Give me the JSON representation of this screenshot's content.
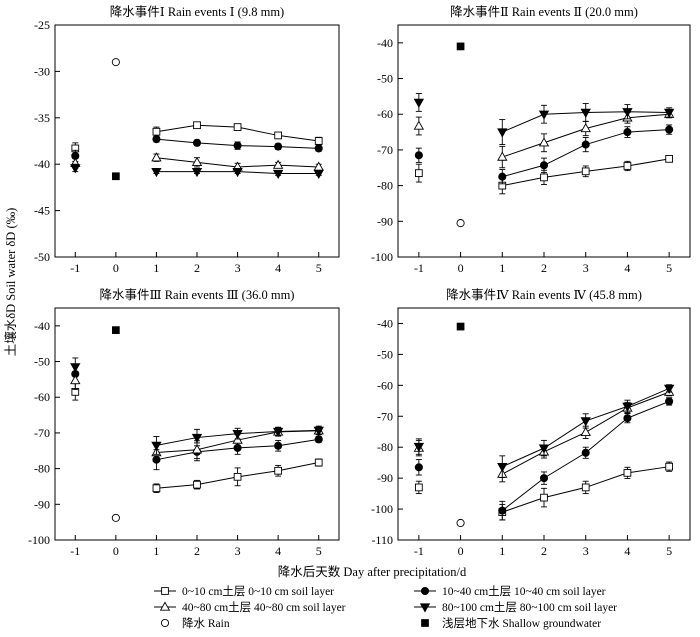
{
  "ylabel": "土壤水δD Soil water δD (‰)",
  "xlabel": "降水后天数 Day after precipitation/d",
  "legend": [
    {
      "key": "l0_10",
      "marker": "square-open",
      "label": "0~10 cm土层  0~10 cm soil layer"
    },
    {
      "key": "l10_40",
      "marker": "circle-filled",
      "label": "10~40 cm土层  10~40 cm soil layer"
    },
    {
      "key": "l40_80",
      "marker": "triangle-up-open",
      "label": "40~80 cm土层  40~80 cm soil layer"
    },
    {
      "key": "l80_100",
      "marker": "triangle-down-filled",
      "label": "80~100 cm土层  80~100 cm soil layer"
    },
    {
      "key": "rain",
      "marker": "circle-open",
      "label": "降水  Rain"
    },
    {
      "key": "gw",
      "marker": "square-filled",
      "label": "浅层地下水  Shallow groundwater"
    }
  ],
  "chart_data": [
    {
      "type": "line",
      "title": "降水事件Ⅰ  Rain events Ⅰ (9.8 mm)",
      "xticks": [
        -1,
        0,
        1,
        2,
        3,
        4,
        5
      ],
      "xlim": [
        -1.5,
        5.5
      ],
      "ylim": [
        -50,
        -25
      ],
      "yticks": [
        -50,
        -45,
        -40,
        -35,
        -30,
        -25
      ],
      "series": [
        {
          "key": "l0_10",
          "x": [
            -1,
            1,
            2,
            3,
            4,
            5
          ],
          "values": [
            -38.3,
            -36.5,
            -35.8,
            -36.0,
            -36.9,
            -37.5
          ],
          "err": [
            0.6,
            0.5,
            0.2,
            0.3,
            0.3,
            0.4
          ]
        },
        {
          "key": "l10_40",
          "x": [
            -1,
            1,
            2,
            3,
            4,
            5
          ],
          "values": [
            -39.1,
            -37.3,
            -37.7,
            -38.0,
            -38.1,
            -38.3
          ],
          "err": [
            0.6,
            0.3,
            0.3,
            0.4,
            0.3,
            0.3
          ]
        },
        {
          "key": "l40_80",
          "x": [
            -1,
            1,
            2,
            3,
            4,
            5
          ],
          "values": [
            -39.9,
            -39.3,
            -39.8,
            -40.3,
            -40.1,
            -40.3
          ],
          "err": [
            0.5,
            0.4,
            0.5,
            0.4,
            0.3,
            0.3
          ]
        },
        {
          "key": "l80_100",
          "x": [
            -1,
            1,
            2,
            3,
            4,
            5
          ],
          "values": [
            -40.4,
            -40.8,
            -40.8,
            -40.8,
            -41.0,
            -41.0
          ],
          "err": [
            0.4,
            0.2,
            0.2,
            0.2,
            0.2,
            0.2
          ]
        },
        {
          "key": "rain",
          "x": [
            0
          ],
          "values": [
            -29.0
          ],
          "err": [
            0
          ]
        },
        {
          "key": "gw",
          "x": [
            0
          ],
          "values": [
            -41.3
          ],
          "err": [
            0
          ]
        }
      ]
    },
    {
      "type": "line",
      "title": "降水事件Ⅱ  Rain events Ⅱ (20.0 mm)",
      "xticks": [
        -1,
        0,
        1,
        2,
        3,
        4,
        5
      ],
      "xlim": [
        -1.5,
        5.5
      ],
      "ylim": [
        -100,
        -35
      ],
      "yticks": [
        -100,
        -90,
        -80,
        -70,
        -60,
        -50,
        -40
      ],
      "series": [
        {
          "key": "l0_10",
          "x": [
            -1,
            1,
            2,
            3,
            4,
            5
          ],
          "values": [
            -76.5,
            -80.0,
            -77.7,
            -76.0,
            -74.5,
            -72.5
          ],
          "err": [
            2.5,
            2.3,
            2.0,
            1.5,
            1.3,
            0.7
          ]
        },
        {
          "key": "l10_40",
          "x": [
            -1,
            1,
            2,
            3,
            4,
            5
          ],
          "values": [
            -71.5,
            -77.5,
            -74.3,
            -68.5,
            -65.0,
            -64.3
          ],
          "err": [
            2.0,
            2.0,
            2.0,
            2.0,
            1.5,
            1.3
          ]
        },
        {
          "key": "l40_80",
          "x": [
            -1,
            1,
            2,
            3,
            4,
            5
          ],
          "values": [
            -63.3,
            -72.0,
            -68.0,
            -64.0,
            -61.0,
            -60.0
          ],
          "err": [
            2.5,
            3.0,
            2.5,
            2.0,
            1.5,
            1.0
          ]
        },
        {
          "key": "l80_100",
          "x": [
            -1,
            1,
            2,
            3,
            4,
            5
          ],
          "values": [
            -56.7,
            -65.0,
            -60.0,
            -59.5,
            -59.3,
            -59.5
          ],
          "err": [
            2.5,
            3.5,
            2.5,
            2.5,
            2.0,
            1.3
          ]
        },
        {
          "key": "rain",
          "x": [
            0
          ],
          "values": [
            -90.5
          ],
          "err": [
            0
          ]
        },
        {
          "key": "gw",
          "x": [
            0
          ],
          "values": [
            -41.0
          ],
          "err": [
            0
          ]
        }
      ]
    },
    {
      "type": "line",
      "title": "降水事件Ⅲ  Rain events Ⅲ (36.0 mm)",
      "xticks": [
        -1,
        0,
        1,
        2,
        3,
        4,
        5
      ],
      "xlim": [
        -1.5,
        5.5
      ],
      "ylim": [
        -100,
        -35
      ],
      "yticks": [
        -100,
        -90,
        -80,
        -70,
        -60,
        -50,
        -40
      ],
      "series": [
        {
          "key": "l0_10",
          "x": [
            -1,
            1,
            2,
            3,
            4,
            5
          ],
          "values": [
            -58.5,
            -85.5,
            -84.5,
            -82.3,
            -80.6,
            -78.3
          ],
          "err": [
            2.3,
            1.2,
            1.2,
            2.5,
            1.5,
            1.0
          ]
        },
        {
          "key": "l10_40",
          "x": [
            -1,
            1,
            2,
            3,
            4,
            5
          ],
          "values": [
            -53.5,
            -77.5,
            -75.3,
            -74.2,
            -73.6,
            -71.8
          ],
          "err": [
            2.5,
            2.8,
            2.5,
            1.8,
            1.5,
            0.8
          ]
        },
        {
          "key": "l40_80",
          "x": [
            -1,
            1,
            2,
            3,
            4,
            5
          ],
          "values": [
            -55.3,
            -75.5,
            -74.7,
            -72.0,
            -69.7,
            -69.4
          ],
          "err": [
            2.5,
            2.3,
            2.5,
            1.5,
            1.2,
            1.0
          ]
        },
        {
          "key": "l80_100",
          "x": [
            -1,
            1,
            2,
            3,
            4,
            5
          ],
          "values": [
            -51.5,
            -73.5,
            -71.3,
            -70.2,
            -69.6,
            -69.3
          ],
          "err": [
            2.5,
            2.5,
            2.3,
            1.5,
            1.2,
            1.2
          ]
        },
        {
          "key": "rain",
          "x": [
            0
          ],
          "values": [
            -93.8
          ],
          "err": [
            0
          ]
        },
        {
          "key": "gw",
          "x": [
            0
          ],
          "values": [
            -41.2
          ],
          "err": [
            0
          ]
        }
      ]
    },
    {
      "type": "line",
      "title": "降水事件Ⅳ  Rain events Ⅳ (45.8 mm)",
      "xticks": [
        -1,
        0,
        1,
        2,
        3,
        4,
        5
      ],
      "xlim": [
        -1.5,
        5.5
      ],
      "ylim": [
        -110,
        -35
      ],
      "yticks": [
        -110,
        -100,
        -90,
        -80,
        -70,
        -60,
        -50,
        -40
      ],
      "series": [
        {
          "key": "l0_10",
          "x": [
            -1,
            1,
            2,
            3,
            4,
            5
          ],
          "values": [
            -93.0,
            -101.0,
            -96.3,
            -93.0,
            -88.3,
            -86.3
          ],
          "err": [
            2.0,
            2.5,
            3.0,
            2.0,
            1.8,
            1.5
          ]
        },
        {
          "key": "l10_40",
          "x": [
            -1,
            1,
            2,
            3,
            4,
            5
          ],
          "values": [
            -86.5,
            -100.5,
            -90.0,
            -81.8,
            -70.6,
            -65.2
          ],
          "err": [
            2.5,
            3.0,
            2.0,
            1.8,
            1.5,
            1.2
          ]
        },
        {
          "key": "l40_80",
          "x": [
            -1,
            1,
            2,
            3,
            4,
            5
          ],
          "values": [
            -80.3,
            -88.7,
            -81.5,
            -75.2,
            -67.3,
            -62.2
          ],
          "err": [
            2.5,
            2.5,
            2.0,
            2.0,
            1.8,
            1.2
          ]
        },
        {
          "key": "l80_100",
          "x": [
            -1,
            1,
            2,
            3,
            4,
            5
          ],
          "values": [
            -79.8,
            -86.3,
            -80.3,
            -71.5,
            -66.8,
            -61.0
          ],
          "err": [
            2.5,
            3.5,
            2.5,
            2.3,
            2.0,
            1.2
          ]
        },
        {
          "key": "rain",
          "x": [
            0
          ],
          "values": [
            -104.5
          ],
          "err": [
            0
          ]
        },
        {
          "key": "gw",
          "x": [
            0
          ],
          "values": [
            -41.0
          ],
          "err": [
            0
          ]
        }
      ]
    }
  ]
}
